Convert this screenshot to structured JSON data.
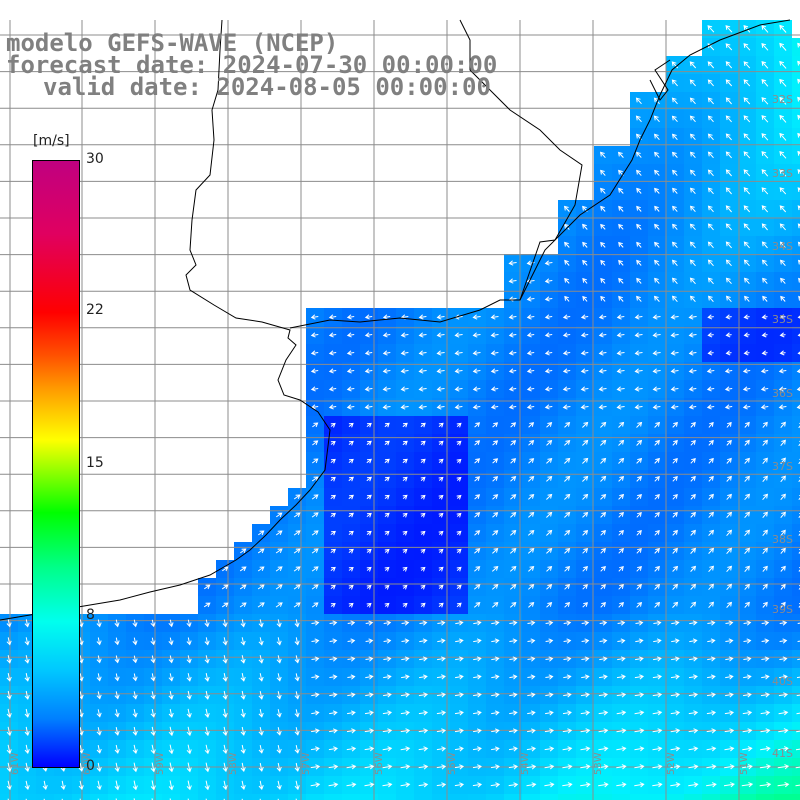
{
  "header": {
    "model": "modelo GEFS-WAVE (NCEP)",
    "forecast": "forecast date: 2024-07-30 00:00:00",
    "valid": "valid date: 2024-08-05 00:00:00"
  },
  "colorbar": {
    "unit": "[m/s]",
    "ticks": [
      "30",
      "22",
      "15",
      "8",
      "0"
    ],
    "colors": [
      "#0000ff",
      "#00c8ff",
      "#00ff88",
      "#ffff00",
      "#ff0000",
      "#c00080"
    ]
  },
  "map": {
    "lat_labels": [
      "32S",
      "33S",
      "34S",
      "35S",
      "36S",
      "37S",
      "38S",
      "39S",
      "40S",
      "41S"
    ],
    "lon_labels": [
      "61W",
      "60W",
      "59W",
      "58W",
      "57W",
      "56W",
      "55W",
      "54W",
      "53W",
      "52W",
      "51W"
    ]
  }
}
